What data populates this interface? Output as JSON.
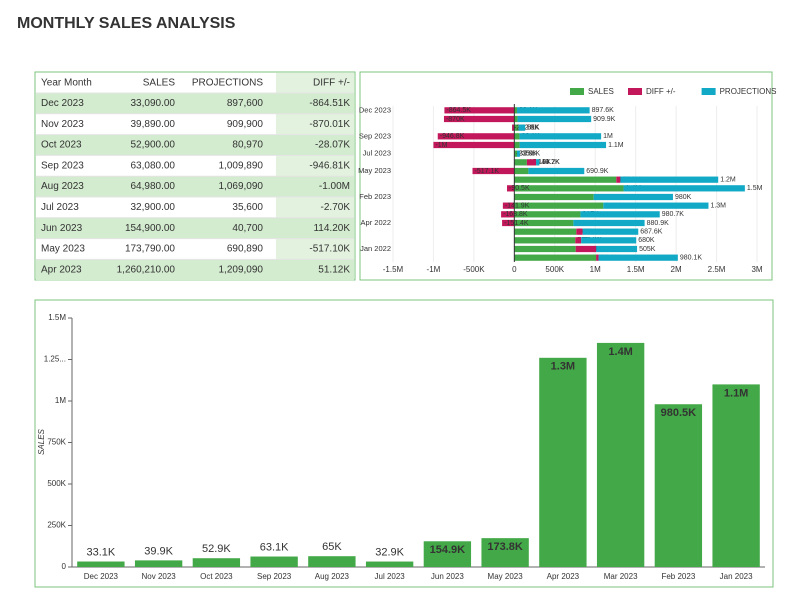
{
  "title": "MONTHLY SALES ANALYSIS",
  "table": {
    "columns": [
      "Year Month",
      "SALES",
      "PROJECTIONS",
      "DIFF +/-"
    ],
    "rows": [
      [
        "Dec 2023",
        "33,090.00",
        "897,600",
        "-864.51K"
      ],
      [
        "Nov 2023",
        "39,890.00",
        "909,900",
        "-870.01K"
      ],
      [
        "Oct 2023",
        "52,900.00",
        "80,970",
        "-28.07K"
      ],
      [
        "Sep 2023",
        "63,080.00",
        "1,009,890",
        "-946.81K"
      ],
      [
        "Aug 2023",
        "64,980.00",
        "1,069,090",
        "-1.00M"
      ],
      [
        "Jul 2023",
        "32,900.00",
        "35,600",
        "-2.70K"
      ],
      [
        "Jun 2023",
        "154,900.00",
        "40,700",
        "114.20K"
      ],
      [
        "May 2023",
        "173,790.00",
        "690,890",
        "-517.10K"
      ],
      [
        "Apr 2023",
        "1,260,210.00",
        "1,209,090",
        "51.12K"
      ]
    ]
  },
  "chart_data": [
    {
      "type": "hbar_stacked",
      "categories": [
        "Dec 2023",
        null,
        null,
        "Sep 2023",
        null,
        "Jul 2023",
        null,
        "May 2023",
        null,
        null,
        "Feb 2023",
        null,
        null,
        "Apr 2022",
        null,
        null,
        "Jan 2022",
        null
      ],
      "series": [
        {
          "name": "SALES",
          "color": "#43a847",
          "values": [
            33090,
            39890,
            52900,
            63080,
            64980,
            32900,
            154900,
            173790,
            1260210,
            1350000,
            980500,
            1100000,
            817000,
            729500,
            766000,
            753400,
            758700,
            1010700
          ],
          "value_labels": [
            "33.1K",
            "39.9K",
            "52.9K",
            "63.1K",
            "65K",
            "32.9K",
            "154.9K",
            "173.8K",
            "1.3M",
            "1.4M",
            "980.5K",
            "1.1M",
            "817K",
            "729.5K",
            "766K",
            "753.4K",
            "758.7K",
            "1M"
          ]
        },
        {
          "name": "DIFF +/-",
          "color": "#c2185b",
          "values": [
            -864510,
            -870010,
            -28070,
            -946810,
            -1000000,
            -2700,
            114200,
            -517100,
            51120,
            -90500,
            500,
            -141900,
            -163800,
            -151400,
            78400,
            73400,
            253700,
            30600
          ],
          "value_labels": [
            "-864.5K",
            "-870K",
            "-28.1K",
            "-946.8K",
            "-1M",
            "-2.7K",
            "114.2K",
            "-517.1K",
            "51.1K",
            "-90.5K",
            "500",
            "-141.9K",
            "-163.8K",
            "-151.4K",
            "78.4K",
            "73.4K",
            "253.7K",
            "30.6K"
          ]
        },
        {
          "name": "PROJECTIONS",
          "color": "#12a9c6",
          "values": [
            897600,
            909900,
            80970,
            1009890,
            1069090,
            35600,
            40700,
            690890,
            1209090,
            1500000,
            980000,
            1300000,
            980700,
            880900,
            687600,
            680000,
            505000,
            980100
          ],
          "value_labels": [
            "897.6K",
            "909.9K",
            "81K",
            "1M",
            "1.1M",
            "35.6K",
            "40.7K",
            "690.9K",
            "1.2M",
            "1.5M",
            "980K",
            "1.3M",
            "980.7K",
            "880.9K",
            "687.6K",
            "680K",
            "505K",
            "980.1K"
          ]
        }
      ],
      "xlim": [
        -1500000,
        3000000
      ],
      "xticks": [
        {
          "value": -1500000,
          "label": "-1.5M"
        },
        {
          "value": -1000000,
          "label": "-1M"
        },
        {
          "value": -500000,
          "label": "-500K"
        },
        0,
        {
          "value": 500000,
          "label": "500K"
        },
        {
          "value": 1000000,
          "label": "1M"
        },
        {
          "value": 1500000,
          "label": "1.5M"
        },
        {
          "value": 2000000,
          "label": "2M"
        },
        {
          "value": 2500000,
          "label": "2.5M"
        },
        {
          "value": 3000000,
          "label": "3M"
        }
      ],
      "legend": "top-right"
    },
    {
      "type": "bar",
      "y_label": "SALES",
      "categories": [
        "Dec 2023",
        "Nov 2023",
        "Oct 2023",
        "Sep 2023",
        "Aug 2023",
        "Jul 2023",
        "Jun 2023",
        "May 2023",
        "Apr 2023",
        "Mar 2023",
        "Feb 2023",
        "Jan 2023"
      ],
      "values": [
        33090,
        39890,
        52900,
        63080,
        64980,
        32900,
        154900,
        173790,
        1260210,
        1350000,
        980500,
        1100000
      ],
      "value_labels": [
        "33.1K",
        "39.9K",
        "52.9K",
        "63.1K",
        "65K",
        "32.9K",
        "154.9K",
        "173.8K",
        "1.3M",
        "1.4M",
        "980.5K",
        "1.1M"
      ],
      "color": "#43a847",
      "ylim": [
        0,
        1500000
      ],
      "yticks": [
        0,
        {
          "value": 250000,
          "label": "250K"
        },
        {
          "value": 500000,
          "label": "500K"
        },
        {
          "value": 750000,
          "label": "750K"
        },
        {
          "value": 1000000,
          "label": "1M"
        },
        {
          "value": 1250000,
          "label": "1.25..."
        },
        {
          "value": 1500000,
          "label": "1.5M"
        }
      ]
    }
  ]
}
